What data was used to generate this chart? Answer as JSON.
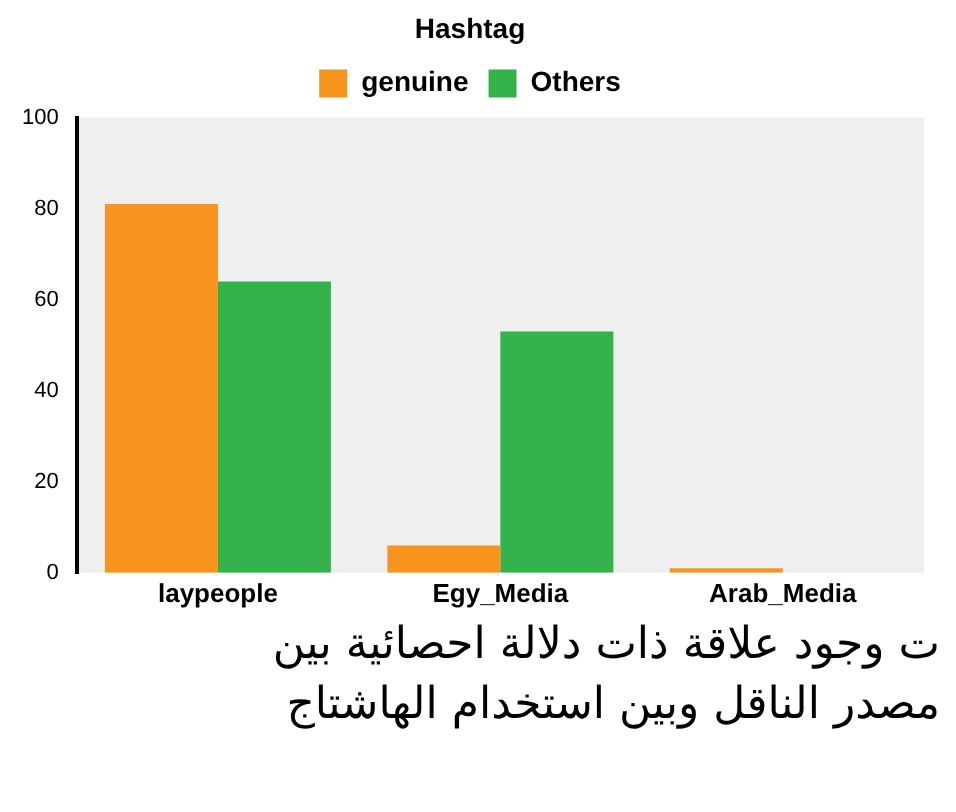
{
  "chart_data": {
    "type": "bar",
    "legend_title": "Hashtag",
    "categories": [
      "laypeople",
      "Egy_Media",
      "Arab_Media"
    ],
    "series": [
      {
        "name": "genuine",
        "color": "#f7941d",
        "values": [
          81,
          6,
          1
        ]
      },
      {
        "name": "Others",
        "color": "#33b24a",
        "values": [
          64,
          53,
          0
        ]
      }
    ],
    "ylim": [
      0,
      100
    ],
    "yticks": [
      0,
      20,
      40,
      60,
      80,
      100
    ],
    "grid": false,
    "legend": "top",
    "annotations": [
      "ت وجود علاقة ذات دلالة احصائية بين",
      "مصدر الناقل وبين استخدام الهاشتاج"
    ]
  }
}
